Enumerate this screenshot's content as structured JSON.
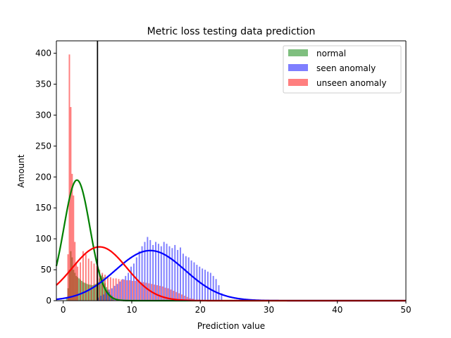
{
  "chart_data": {
    "type": "histogram",
    "title": "Metric loss testing data prediction",
    "xlabel": "Prediction value",
    "ylabel": "Amount",
    "xlim": [
      -1,
      50
    ],
    "ylim": [
      0,
      420
    ],
    "xticks": [
      0,
      10,
      20,
      30,
      40,
      50
    ],
    "yticks": [
      0,
      50,
      100,
      150,
      200,
      250,
      300,
      350,
      400
    ],
    "grid": false,
    "legend_position": "top-right",
    "threshold_line_x": 5,
    "series": [
      {
        "name": "normal",
        "kind": "histogram",
        "color": "#008000",
        "opacity": 0.5,
        "bin_width": 0.2,
        "bins": [
          [
            0.4,
            5
          ],
          [
            0.6,
            20
          ],
          [
            0.8,
            50
          ],
          [
            1.0,
            80
          ],
          [
            1.2,
            70
          ],
          [
            1.4,
            50
          ],
          [
            1.6,
            45
          ],
          [
            1.8,
            40
          ],
          [
            2.0,
            38
          ],
          [
            2.2,
            36
          ],
          [
            2.4,
            34
          ],
          [
            2.6,
            32
          ],
          [
            2.8,
            30
          ],
          [
            3.0,
            29
          ],
          [
            3.2,
            28
          ],
          [
            3.4,
            27
          ],
          [
            3.6,
            26
          ],
          [
            3.8,
            26
          ],
          [
            4.0,
            25
          ],
          [
            4.2,
            25
          ],
          [
            4.4,
            26
          ],
          [
            4.6,
            27
          ],
          [
            4.8,
            28
          ],
          [
            5.0,
            30
          ],
          [
            5.2,
            36
          ],
          [
            5.4,
            40
          ],
          [
            5.6,
            42
          ],
          [
            5.8,
            38
          ],
          [
            6.0,
            28
          ],
          [
            6.2,
            22
          ],
          [
            6.4,
            18
          ],
          [
            6.6,
            14
          ],
          [
            6.8,
            10
          ],
          [
            7.0,
            8
          ],
          [
            7.2,
            5
          ]
        ]
      },
      {
        "name": "seen anomaly",
        "kind": "histogram",
        "color": "#0000ff",
        "opacity": 0.5,
        "bin_width": 0.2,
        "bins": [
          [
            5.0,
            5
          ],
          [
            5.4,
            8
          ],
          [
            5.8,
            10
          ],
          [
            6.2,
            14
          ],
          [
            6.6,
            18
          ],
          [
            7.0,
            20
          ],
          [
            7.4,
            24
          ],
          [
            7.8,
            27
          ],
          [
            8.2,
            31
          ],
          [
            8.6,
            35
          ],
          [
            9.0,
            40
          ],
          [
            9.4,
            45
          ],
          [
            9.8,
            55
          ],
          [
            10.2,
            60
          ],
          [
            10.6,
            70
          ],
          [
            11.0,
            80
          ],
          [
            11.4,
            88
          ],
          [
            11.8,
            95
          ],
          [
            12.2,
            103
          ],
          [
            12.6,
            98
          ],
          [
            13.0,
            90
          ],
          [
            13.4,
            95
          ],
          [
            13.8,
            92
          ],
          [
            14.2,
            88
          ],
          [
            14.6,
            95
          ],
          [
            15.0,
            92
          ],
          [
            15.4,
            88
          ],
          [
            15.8,
            85
          ],
          [
            16.2,
            90
          ],
          [
            16.6,
            82
          ],
          [
            17.0,
            86
          ],
          [
            17.4,
            76
          ],
          [
            17.8,
            72
          ],
          [
            18.2,
            70
          ],
          [
            18.6,
            65
          ],
          [
            19.0,
            62
          ],
          [
            19.4,
            58
          ],
          [
            19.8,
            55
          ],
          [
            20.2,
            52
          ],
          [
            20.6,
            50
          ],
          [
            21.0,
            47
          ],
          [
            21.4,
            45
          ],
          [
            21.8,
            40
          ],
          [
            22.2,
            35
          ],
          [
            22.6,
            25
          ],
          [
            23.0,
            12
          ]
        ]
      },
      {
        "name": "unseen anomaly",
        "kind": "histogram",
        "color": "#ff0000",
        "opacity": 0.5,
        "bin_width": 0.2,
        "bins": [
          [
            0.6,
            75
          ],
          [
            0.8,
            398
          ],
          [
            1.0,
            313
          ],
          [
            1.2,
            205
          ],
          [
            1.4,
            170
          ],
          [
            1.6,
            95
          ],
          [
            1.8,
            60
          ],
          [
            2.0,
            55
          ],
          [
            2.4,
            62
          ],
          [
            2.8,
            80
          ],
          [
            3.2,
            75
          ],
          [
            3.6,
            68
          ],
          [
            4.0,
            64
          ],
          [
            4.4,
            60
          ],
          [
            4.8,
            56
          ],
          [
            5.2,
            50
          ],
          [
            5.6,
            45
          ],
          [
            6.0,
            42
          ],
          [
            6.4,
            40
          ],
          [
            6.8,
            38
          ],
          [
            7.2,
            36
          ],
          [
            7.6,
            36
          ],
          [
            8.0,
            35
          ],
          [
            8.4,
            34
          ],
          [
            8.8,
            34
          ],
          [
            9.2,
            33
          ],
          [
            9.6,
            33
          ],
          [
            10.0,
            32
          ],
          [
            10.4,
            32
          ],
          [
            10.8,
            31
          ],
          [
            11.2,
            30
          ],
          [
            11.6,
            30
          ],
          [
            12.0,
            29
          ],
          [
            12.4,
            28
          ],
          [
            12.8,
            27
          ],
          [
            13.2,
            26
          ],
          [
            13.6,
            25
          ],
          [
            14.0,
            24
          ],
          [
            14.4,
            23
          ],
          [
            14.8,
            21
          ],
          [
            15.2,
            20
          ],
          [
            15.6,
            18
          ],
          [
            16.0,
            16
          ],
          [
            16.4,
            14
          ],
          [
            16.8,
            12
          ],
          [
            17.2,
            10
          ],
          [
            17.6,
            8
          ],
          [
            18.0,
            6
          ],
          [
            18.4,
            4
          ],
          [
            18.8,
            3
          ]
        ]
      },
      {
        "name": "normal fit",
        "kind": "gaussian",
        "color": "#008000",
        "mean": 2.0,
        "sd": 1.9,
        "peak": 195
      },
      {
        "name": "seen anomaly fit",
        "kind": "gaussian",
        "color": "#0000ff",
        "mean": 12.7,
        "sd": 5.1,
        "peak": 81
      },
      {
        "name": "unseen anomaly fit",
        "kind": "gaussian",
        "color": "#ff0000",
        "mean": 5.3,
        "sd": 4.0,
        "peak": 87
      }
    ]
  }
}
